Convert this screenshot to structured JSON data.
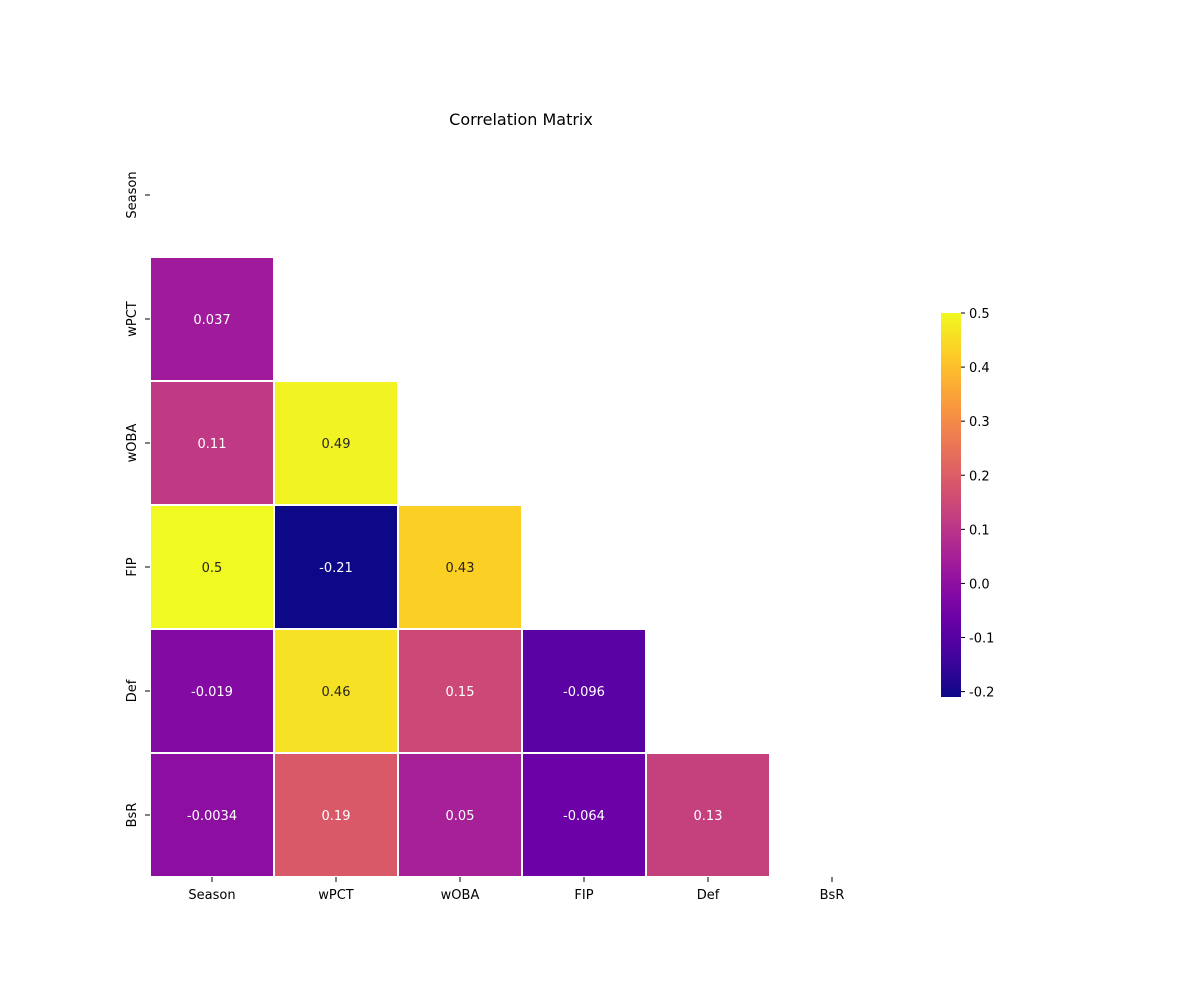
{
  "chart_data": {
    "type": "heatmap",
    "title": "Correlation Matrix",
    "variables": [
      "Season",
      "wPCT",
      "wOBA",
      "FIP",
      "Def",
      "BsR"
    ],
    "mask": "upper-triangle-including-diagonal",
    "values": [
      [
        null,
        null,
        null,
        null,
        null,
        null
      ],
      [
        0.037,
        null,
        null,
        null,
        null,
        null
      ],
      [
        0.11,
        0.49,
        null,
        null,
        null,
        null
      ],
      [
        0.5,
        -0.21,
        0.43,
        null,
        null,
        null
      ],
      [
        -0.019,
        0.46,
        0.15,
        -0.096,
        null,
        null
      ],
      [
        -0.0034,
        0.19,
        0.05,
        -0.064,
        0.13,
        null
      ]
    ],
    "colormap": "plasma",
    "vmin": -0.21,
    "vmax": 0.5,
    "colorbar_ticks": [
      "-0.2",
      "-0.1",
      "0.0",
      "0.1",
      "0.2",
      "0.3",
      "0.4",
      "0.5"
    ],
    "colorbar_tick_values": [
      -0.2,
      -0.1,
      0.0,
      0.1,
      0.2,
      0.3,
      0.4,
      0.5
    ],
    "colorbar_placement": "right",
    "cell_borders": "white"
  }
}
